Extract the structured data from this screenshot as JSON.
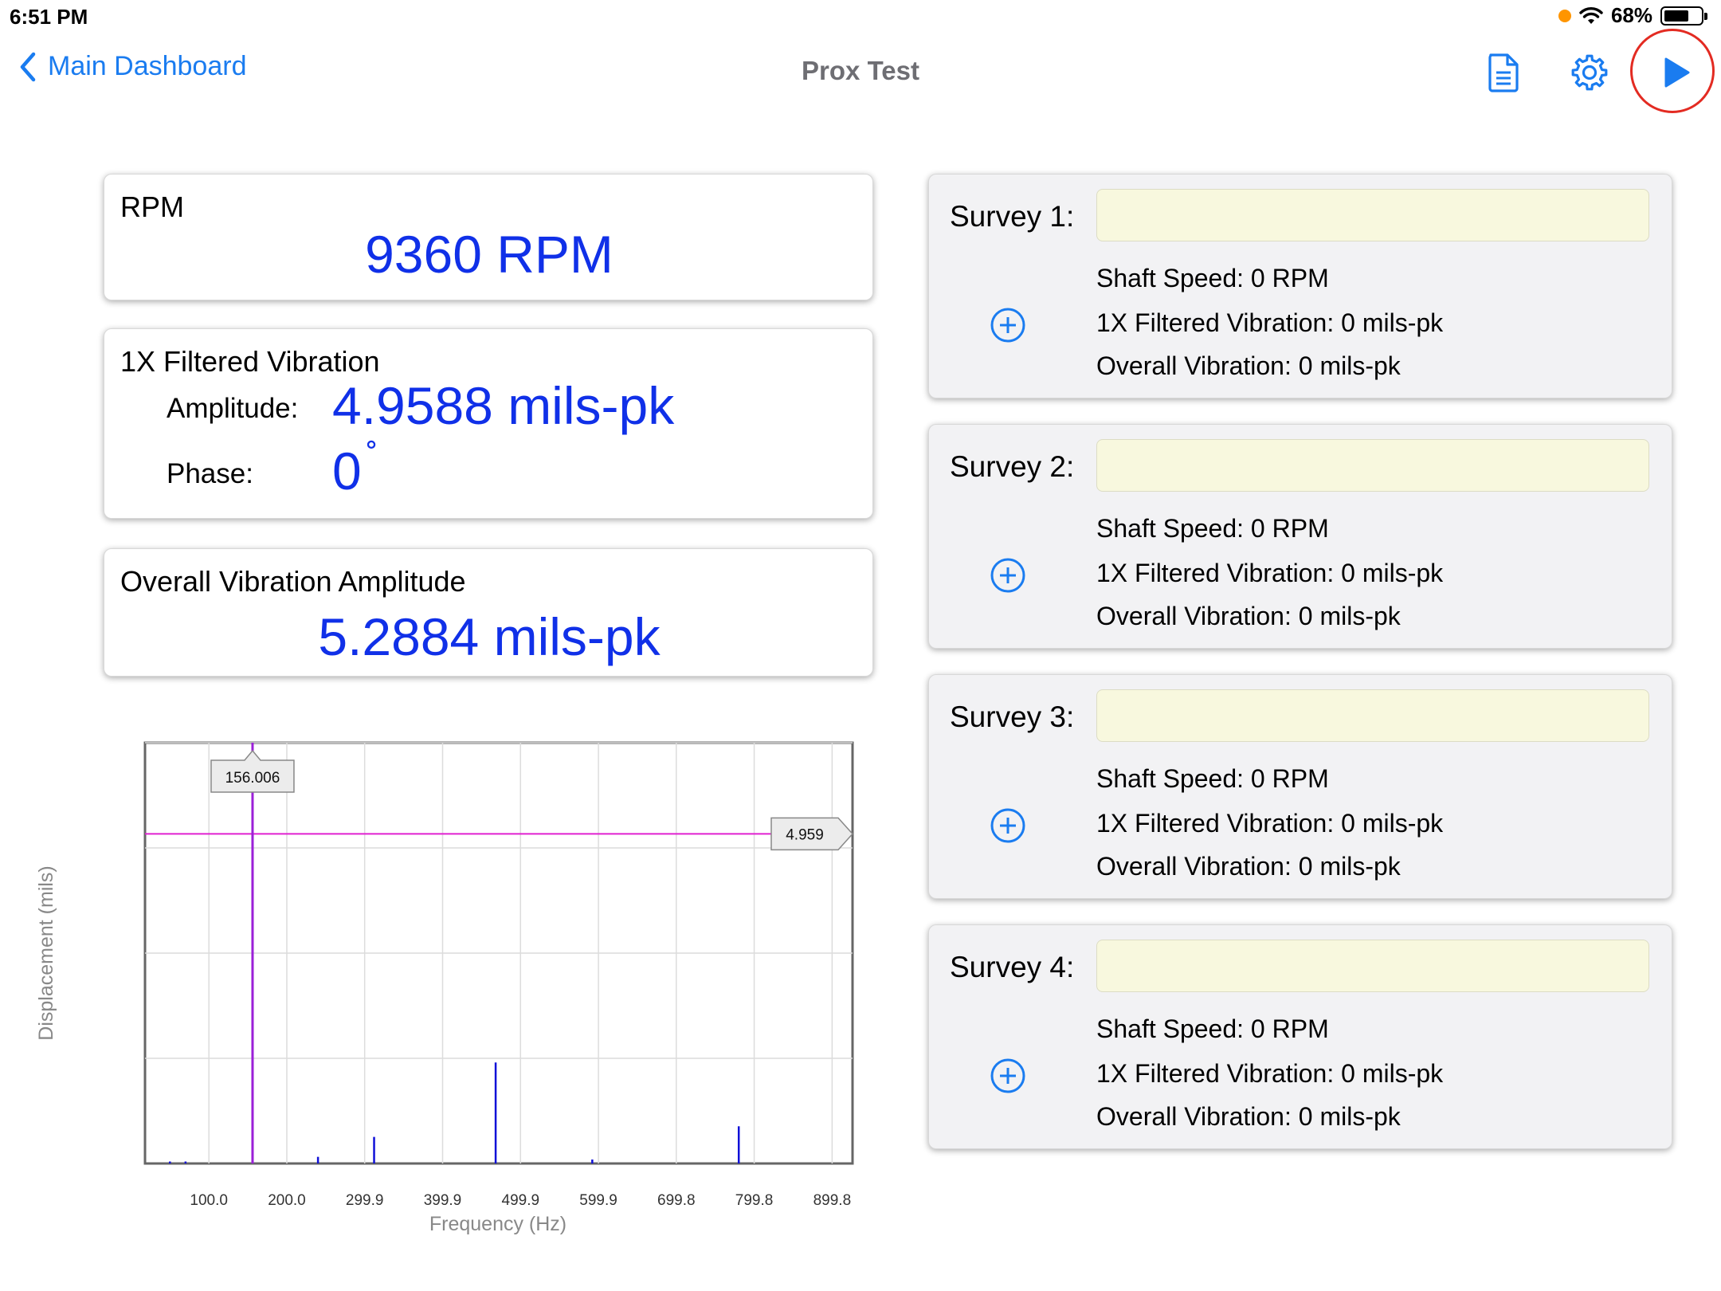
{
  "status": {
    "time": "6:51 PM",
    "battery": "68%",
    "battery_level": 0.68
  },
  "nav": {
    "back_label": "Main Dashboard",
    "title": "Prox Test",
    "icons": [
      "back-chevron-icon",
      "document-icon",
      "gear-icon",
      "play-icon"
    ]
  },
  "rpm_card": {
    "label": "RPM",
    "value": "9360 RPM"
  },
  "filtered_card": {
    "label": "1X Filtered Vibration",
    "amplitude_label": "Amplitude:",
    "amplitude_value": "4.9588 mils-pk",
    "phase_label": "Phase:",
    "phase_value": "0",
    "phase_unit": "˚"
  },
  "overall_card": {
    "label": "Overall Vibration Amplitude",
    "value": "5.2884 mils-pk"
  },
  "surveys": [
    {
      "title": "Survey 1:",
      "input_value": "",
      "shaft_speed": "Shaft Speed: 0 RPM",
      "filtered": "1X Filtered Vibration: 0 mils-pk",
      "overall": "Overall Vibration: 0 mils-pk"
    },
    {
      "title": "Survey 2:",
      "input_value": "",
      "shaft_speed": "Shaft Speed: 0 RPM",
      "filtered": "1X Filtered Vibration: 0 mils-pk",
      "overall": "Overall Vibration: 0 mils-pk"
    },
    {
      "title": "Survey 3:",
      "input_value": "",
      "shaft_speed": "Shaft Speed: 0 RPM",
      "filtered": "1X Filtered Vibration: 0 mils-pk",
      "overall": "Overall Vibration: 0 mils-pk"
    },
    {
      "title": "Survey 4:",
      "input_value": "",
      "shaft_speed": "Shaft Speed: 0 RPM",
      "filtered": "1X Filtered Vibration: 0 mils-pk",
      "overall": "Overall Vibration: 0 mils-pk"
    }
  ],
  "chart_data": {
    "type": "bar",
    "xlabel": "Frequency (Hz)",
    "ylabel": "Displacement (mils)",
    "xlim": [
      18,
      926
    ],
    "ylim": [
      0,
      6.33
    ],
    "x_ticks": [
      "100.0",
      "200.0",
      "299.9",
      "399.9",
      "499.9",
      "599.9",
      "699.8",
      "799.8",
      "899.8"
    ],
    "x_tick_values": [
      100.0,
      200.0,
      299.9,
      399.9,
      499.9,
      599.9,
      699.8,
      799.8,
      899.8
    ],
    "grid": true,
    "peaks": [
      {
        "x": 156.0,
        "y": 4.959
      },
      {
        "x": 240.0,
        "y": 0.1
      },
      {
        "x": 312.0,
        "y": 0.4
      },
      {
        "x": 468.0,
        "y": 1.52
      },
      {
        "x": 592.0,
        "y": 0.06
      },
      {
        "x": 780.0,
        "y": 0.56
      },
      {
        "x": 50.0,
        "y": 0.03
      },
      {
        "x": 70.0,
        "y": 0.03
      }
    ],
    "cursor_x": {
      "value": 156.0,
      "label": "156.006"
    },
    "cursor_y": {
      "value": 4.959,
      "label": "4.959"
    },
    "colors": {
      "peaks": "#1010d8",
      "cursor_x": "#9b20d8",
      "cursor_y": "#e020d0"
    }
  }
}
